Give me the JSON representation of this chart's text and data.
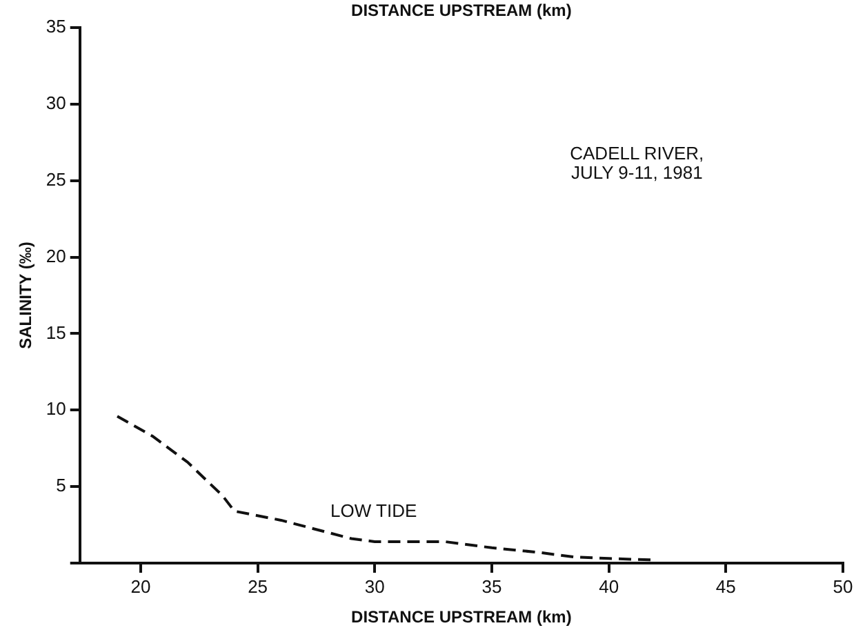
{
  "chart_data": {
    "type": "line",
    "xlabel": "DISTANCE UPSTREAM (km)",
    "ylabel": "SALINITY (‰)",
    "annotations": [
      "DISTANCE UPSTREAM (km)",
      "CADELL RIVER,\nJULY 9-11, 1981",
      "LOW TIDE"
    ],
    "x": [
      19,
      20.5,
      22,
      23.5,
      24,
      26,
      28,
      29,
      30,
      33,
      35,
      37,
      38.5,
      40,
      42
    ],
    "series": [
      {
        "color": "#111111",
        "values": [
          9.6,
          8.3,
          6.6,
          4.4,
          3.4,
          2.8,
          2.0,
          1.6,
          1.4,
          1.4,
          1.0,
          0.7,
          0.4,
          0.3,
          0.2
        ]
      }
    ],
    "xlim": [
      17.4,
      50
    ],
    "xticks": [
      20,
      25,
      30,
      35,
      40,
      45,
      50
    ],
    "ylim": [
      0,
      35
    ],
    "yticks": [
      {
        "value": 0,
        "label": null
      },
      5,
      10,
      15,
      20,
      25,
      30,
      35
    ],
    "grid": false,
    "legend": false,
    "marker": "none",
    "line_style": "dashed"
  }
}
